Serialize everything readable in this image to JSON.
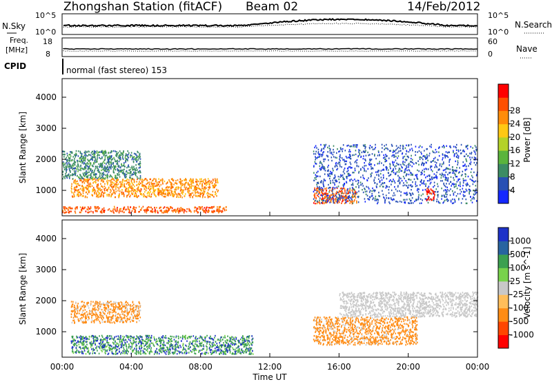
{
  "header": {
    "station": "Zhongshan Station (fitACF)",
    "beam": "Beam 02",
    "date": "14/Feb/2012"
  },
  "noise_panel": {
    "left_label": "N.Sky",
    "right_label": "N.Search",
    "left_ticks": [
      "10^5",
      "10^0"
    ],
    "right_ticks": [
      "10^5",
      "10^0"
    ]
  },
  "freq_panel": {
    "left_label_1": "Freq.",
    "left_label_2": "[MHz]",
    "right_label": "Nave",
    "left_ticks": [
      "18",
      "8"
    ],
    "right_ticks": [
      "60",
      "0"
    ]
  },
  "cpid": {
    "label": "CPID",
    "text": "normal (fast stereo) 153"
  },
  "x_ticks": [
    "00:00",
    "04:00",
    "08:00",
    "12:00",
    "16:00",
    "20:00",
    "00:00"
  ],
  "x_label": "Time UT",
  "y_ticks": [
    "1000",
    "2000",
    "3000",
    "4000"
  ],
  "colors": {
    "power_scale": [
      "#1428ff",
      "#2850b4",
      "#3c8c64",
      "#5ab43c",
      "#b4d228",
      "#ffc814",
      "#ff8c0a",
      "#ff5000",
      "#ff0000"
    ],
    "velocity_scale": [
      "#ff0000",
      "#ff4600",
      "#ff8c14",
      "#ffbe5a",
      "#c8c8c8",
      "#78d24b",
      "#3ca050",
      "#2864a0",
      "#1e32c8"
    ]
  },
  "chart_data": [
    {
      "type": "heatmap",
      "title": "",
      "xlabel": "Time UT",
      "ylabel": "Slant Range [km]",
      "colorbar_label": "Power [dB]",
      "colorbar_ticks": [
        "4",
        "8",
        "12",
        "16",
        "20",
        "24",
        "28"
      ],
      "x_range": [
        "00:00",
        "00:00"
      ],
      "ylim": [
        180,
        4600
      ],
      "features": [
        {
          "time": "00:00-09:30",
          "range_km": "300-500",
          "power_db": "24-28",
          "note": "strong near-range echoes"
        },
        {
          "time": "00:30-09:00",
          "range_km": "800-1400",
          "power_db": "16-28"
        },
        {
          "time": "00:00-04:30",
          "range_km": "1400-2300",
          "power_db": "8-20"
        },
        {
          "time": "14:30-17:00",
          "range_km": "600-1100",
          "power_db": "20-28"
        },
        {
          "time": "14:30-23:59",
          "range_km": "600-2500",
          "power_db": "4-20"
        },
        {
          "time": "21:00-21:30",
          "range_km": "700-1100",
          "power_db": "24-28"
        }
      ]
    },
    {
      "type": "heatmap",
      "title": "",
      "xlabel": "Time UT",
      "ylabel": "Slant Range [km]",
      "colorbar_label": "Velocity [m s^-1]",
      "colorbar_ticks": [
        "1000",
        "500",
        "100",
        "25",
        "-25",
        "-100",
        "-500",
        "-1000"
      ],
      "x_range": [
        "00:00",
        "00:00"
      ],
      "ylim": [
        180,
        4600
      ],
      "features": [
        {
          "time": "00:30-04:30",
          "range_km": "1300-2000",
          "velocity_ms": "-100 to -500"
        },
        {
          "time": "00:30-11:00",
          "range_km": "300-900",
          "velocity_ms": "100 to 1000"
        },
        {
          "time": "14:30-20:30",
          "range_km": "600-1500",
          "velocity_ms": "-100 to -500"
        },
        {
          "time": "16:00-23:59",
          "range_km": "1500-2300",
          "velocity_ms": "-25 to 25"
        }
      ]
    }
  ]
}
